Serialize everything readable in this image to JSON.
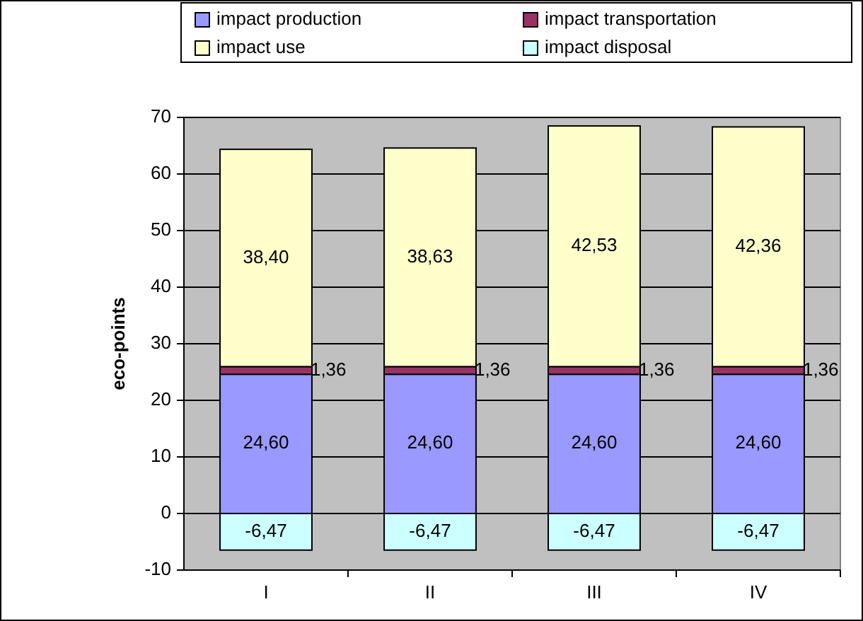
{
  "chart_data": {
    "type": "bar",
    "ylabel": "eco-points",
    "categories": [
      "I",
      "II",
      "III",
      "IV"
    ],
    "stacked": true,
    "series": [
      {
        "name": "impact production",
        "color": "#9999ff",
        "values": [
          24.6,
          24.6,
          24.6,
          24.6
        ],
        "value_labels": [
          "24,60",
          "24,60",
          "24,60",
          "24,60"
        ]
      },
      {
        "name": "impact transportation",
        "color": "#993366",
        "values": [
          1.36,
          1.36,
          1.36,
          1.36
        ],
        "value_labels": [
          "1,36",
          "1,36",
          "1,36",
          "1,36"
        ]
      },
      {
        "name": "impact use",
        "color": "#ffffcc",
        "values": [
          38.4,
          38.63,
          42.53,
          42.36
        ],
        "value_labels": [
          "38,40",
          "38,63",
          "42,53",
          "42,36"
        ]
      },
      {
        "name": "impact disposal",
        "color": "#ccffff",
        "values": [
          -6.47,
          -6.47,
          -6.47,
          -6.47
        ],
        "value_labels": [
          "-6,47",
          "-6,47",
          "-6,47",
          "-6,47"
        ]
      }
    ],
    "ylim": [
      -10,
      70
    ],
    "yticks": [
      -10,
      0,
      10,
      20,
      30,
      40,
      50,
      60,
      70
    ],
    "grid": "y",
    "legend": "top"
  }
}
